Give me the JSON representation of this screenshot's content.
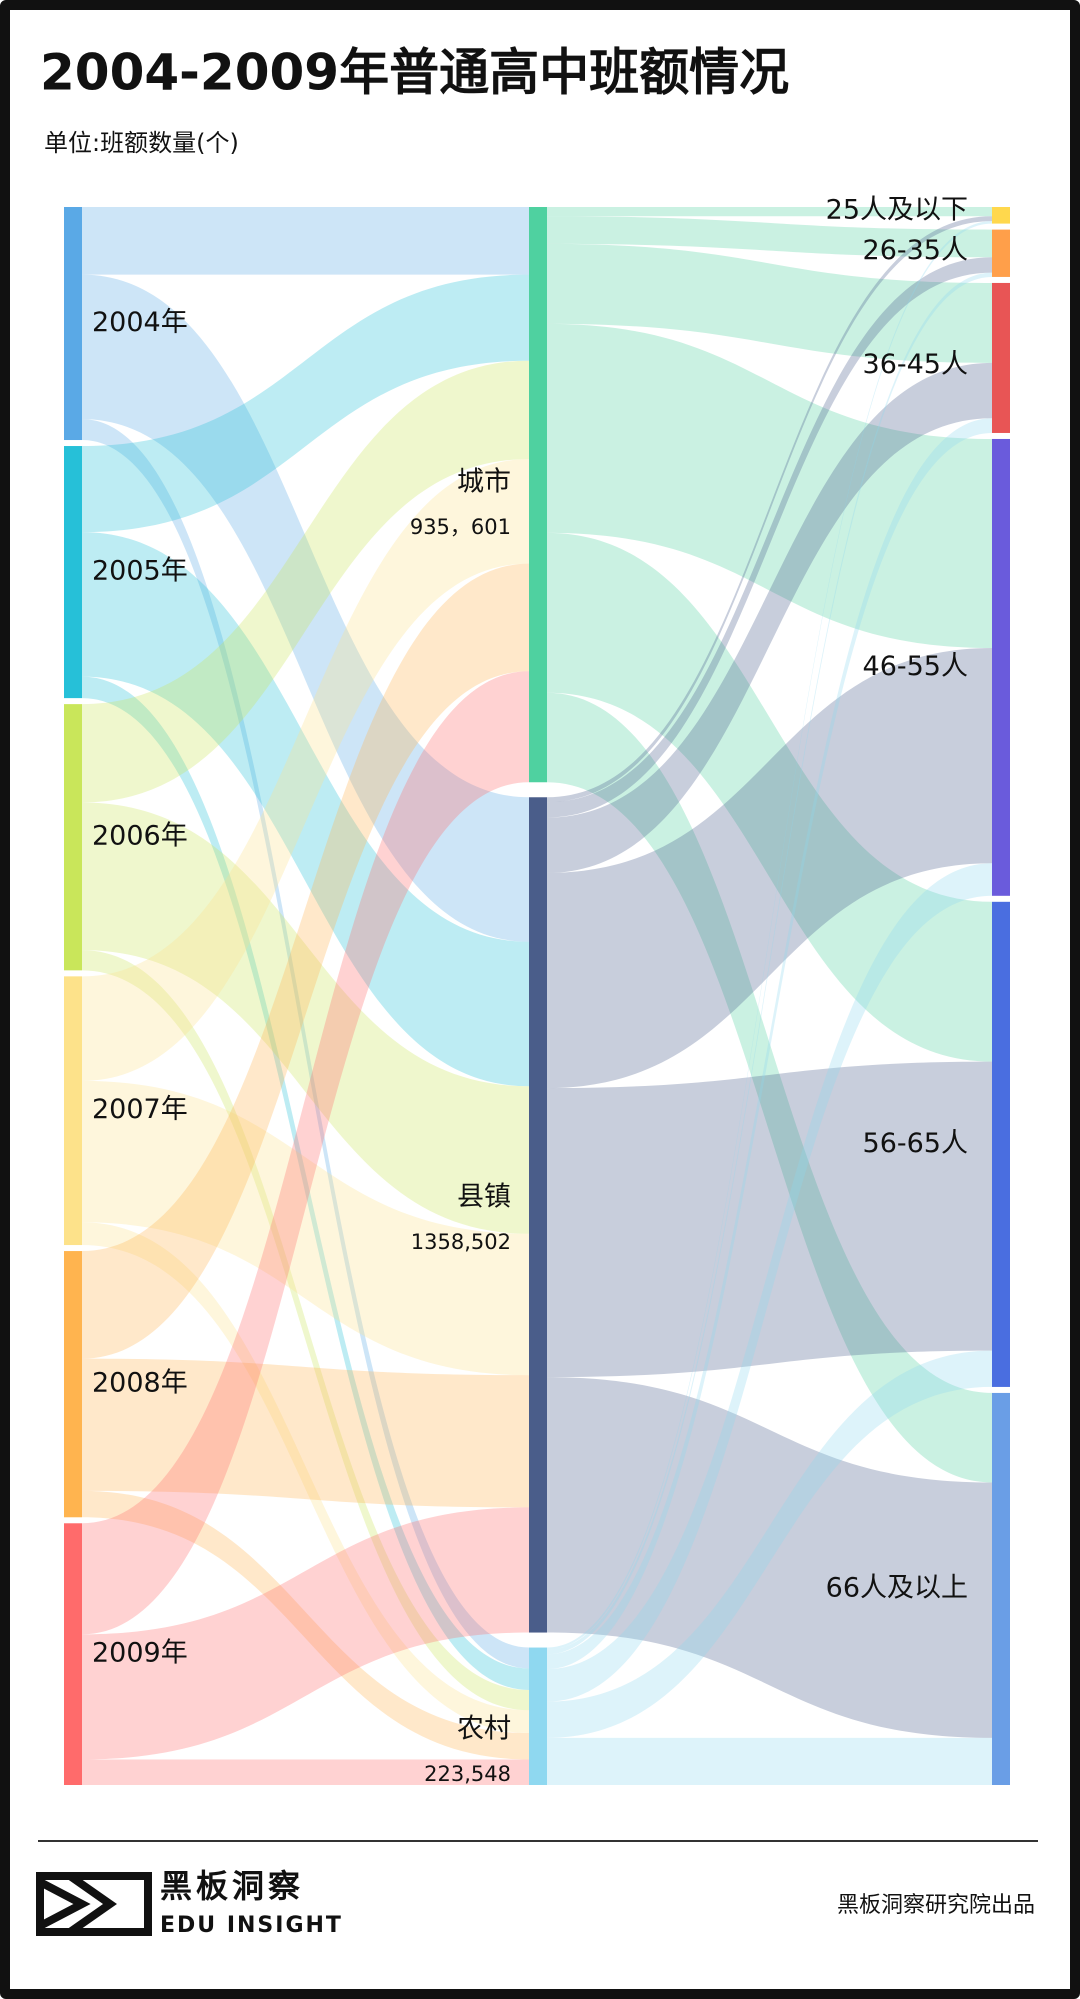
{
  "chart_data": {
    "type": "sankey",
    "title": "2004-2009年普通高中班额情况",
    "subtitle": "单位:班额数量(个)",
    "years": [
      {
        "name": "2004年",
        "color": "#5aa9e6"
      },
      {
        "name": "2005年",
        "color": "#26c0d8"
      },
      {
        "name": "2006年",
        "color": "#c9e65a"
      },
      {
        "name": "2007年",
        "color": "#fde28a"
      },
      {
        "name": "2008年",
        "color": "#ffb44f"
      },
      {
        "name": "2009年",
        "color": "#ff6b6b"
      }
    ],
    "areas": [
      {
        "name": "城市",
        "value": {
          "value": 935601,
          "label": "935，601"
        },
        "color": "#4fd1a0"
      },
      {
        "name": "县镇",
        "value": {
          "value": 1358502,
          "label": "1358,502"
        },
        "color": "#4a5d8a"
      },
      {
        "name": "农村",
        "value": {
          "value": 223548,
          "label": "223,548"
        },
        "color": "#8fd8f0"
      }
    ],
    "sizes": [
      {
        "name": "25人及以下",
        "color": "#ffd84d"
      },
      {
        "name": "26-35人",
        "color": "#ff9f4a"
      },
      {
        "name": "36-45人",
        "color": "#e85555"
      },
      {
        "name": "46-55人",
        "color": "#6a5bdc"
      },
      {
        "name": "56-65人",
        "color": "#4a6ee0"
      },
      {
        "name": "66人及以上",
        "color": "#6a9ee6"
      }
    ],
    "year_to_area": [
      [
        110000,
        235000,
        34000
      ],
      [
        140000,
        235000,
        35000
      ],
      [
        160000,
        240000,
        33000
      ],
      [
        170000,
        230000,
        37000
      ],
      [
        175000,
        215000,
        43000
      ],
      [
        180601,
        203502,
        41548
      ]
    ],
    "area_to_size": [
      [
        15000,
        45000,
        130000,
        340000,
        260000,
        145601
      ],
      [
        8000,
        25000,
        90000,
        350000,
        470000,
        415502
      ],
      [
        4000,
        7000,
        24000,
        53000,
        59000,
        76548
      ]
    ]
  },
  "footer": {
    "brand": "黑板洞察",
    "brand_en": "EDU INSIGHT",
    "credit": "黑板洞察研究院出品"
  }
}
